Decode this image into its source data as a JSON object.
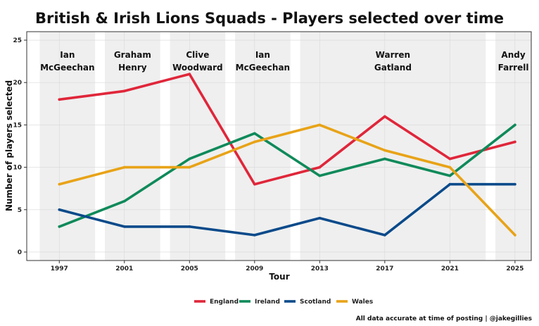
{
  "chart_data": {
    "type": "line",
    "title": "British & Irish Lions Squads - Players selected over time",
    "xlabel": "Tour",
    "ylabel": "Number of players selected",
    "caption": "All data accurate at time of posting | @jakegillies",
    "x": [
      1997,
      2001,
      2005,
      2009,
      2013,
      2017,
      2021,
      2025
    ],
    "xlim": [
      1995,
      2026
    ],
    "ylim": [
      -1,
      26
    ],
    "yticks": [
      0,
      5,
      10,
      15,
      20,
      25
    ],
    "grid": true,
    "legend_position": "bottom",
    "series": [
      {
        "name": "England",
        "color": "#e0263a",
        "values": [
          18,
          19,
          21,
          8,
          10,
          16,
          11,
          13
        ]
      },
      {
        "name": "Ireland",
        "color": "#0f8a5a",
        "values": [
          3,
          6,
          11,
          14,
          9,
          11,
          9,
          15
        ]
      },
      {
        "name": "Scotland",
        "color": "#0a4a8a",
        "values": [
          5,
          3,
          3,
          2,
          4,
          2,
          8,
          8
        ]
      },
      {
        "name": "Wales",
        "color": "#e8a317",
        "values": [
          8,
          10,
          10,
          13,
          15,
          12,
          10,
          2
        ]
      }
    ],
    "coach_bands": [
      {
        "coach": [
          "Ian",
          "McGeechan"
        ],
        "from": 1995.8,
        "to": 1999.2
      },
      {
        "coach": [
          "Graham",
          "Henry"
        ],
        "from": 1999.8,
        "to": 2003.2
      },
      {
        "coach": [
          "Clive",
          "Woodward"
        ],
        "from": 2003.8,
        "to": 2007.2
      },
      {
        "coach": [
          "Ian",
          "McGeechan"
        ],
        "from": 2007.8,
        "to": 2011.2
      },
      {
        "coach": [
          "Warren",
          "Gatland"
        ],
        "from": 2011.8,
        "to": 2023.2
      },
      {
        "coach": [
          "Andy",
          "Farrell"
        ],
        "from": 2023.8,
        "to": 2027.2
      }
    ]
  }
}
